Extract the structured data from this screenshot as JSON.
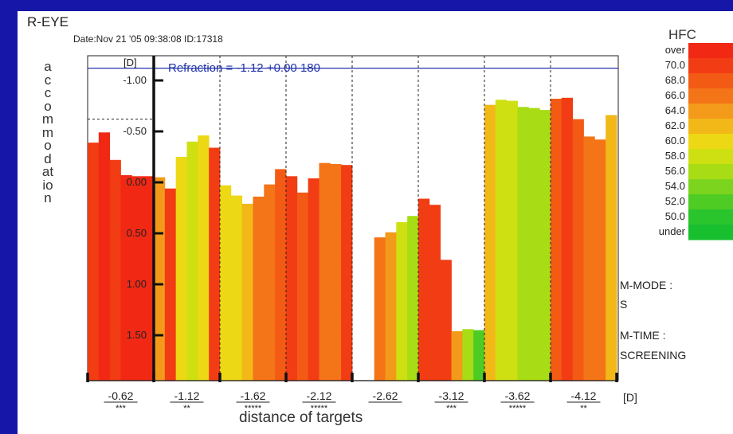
{
  "header": {
    "title": "R-EYE",
    "date_id": "Date:Nov 21 '05 09:38:08   ID:17318"
  },
  "side_info": {
    "m_mode_label": "M-MODE :",
    "m_mode_value": "S",
    "m_time_label": "M-TIME :",
    "m_time_value": "SCREENING"
  },
  "legend": {
    "title": "HFC",
    "entries": [
      {
        "label": "over",
        "color": "#f02814"
      },
      {
        "label": "70.0",
        "color": "#f23c14"
      },
      {
        "label": "68.0",
        "color": "#f35a14"
      },
      {
        "label": "66.0",
        "color": "#f47418"
      },
      {
        "label": "64.0",
        "color": "#f39a1a"
      },
      {
        "label": "62.0",
        "color": "#f2b818"
      },
      {
        "label": "60.0",
        "color": "#ecd814"
      },
      {
        "label": "58.0",
        "color": "#cfe012"
      },
      {
        "label": "56.0",
        "color": "#a8dc14"
      },
      {
        "label": "54.0",
        "color": "#7cd41e"
      },
      {
        "label": "52.0",
        "color": "#4ecc24"
      },
      {
        "label": "50.0",
        "color": "#2ac42c"
      },
      {
        "label": "under",
        "color": "#18c030"
      }
    ]
  },
  "chart_data": {
    "type": "bar",
    "title": "Refraction = -1.12  +0.00 180",
    "xlabel": "distance of targets",
    "ylabel": "accommodation",
    "y_unit": "[D]",
    "x_unit": "[D]",
    "refraction_value": -1.12,
    "ylim": [
      -1.2,
      2.15
    ],
    "y_inverted": true,
    "y_ticks": [
      {
        "label": "-1.00",
        "value": -1.0
      },
      {
        "label": "-0.50",
        "value": -0.5
      },
      {
        "label": "0.00",
        "value": 0.0
      },
      {
        "label": "0.50",
        "value": 0.5
      },
      {
        "label": "1.00",
        "value": 1.0
      },
      {
        "label": "1.50",
        "value": 1.5
      }
    ],
    "dashed_level": -0.62,
    "groups": [
      {
        "target": "-0.62",
        "stars": "***",
        "bars": [
          {
            "value": -0.39,
            "hfc": "70.0"
          },
          {
            "value": -0.49,
            "hfc": "over"
          },
          {
            "value": -0.22,
            "hfc": "70.0"
          },
          {
            "value": -0.07,
            "hfc": "over"
          },
          {
            "value": -0.06,
            "hfc": "over"
          },
          {
            "value": -0.06,
            "hfc": "over"
          }
        ]
      },
      {
        "target": "-1.12",
        "stars": "**",
        "bars": [
          {
            "value": -0.05,
            "hfc": "64.0"
          },
          {
            "value": 0.06,
            "hfc": "70.0"
          },
          {
            "value": -0.25,
            "hfc": "60.0"
          },
          {
            "value": -0.4,
            "hfc": "58.0"
          },
          {
            "value": -0.46,
            "hfc": "60.0"
          },
          {
            "value": -0.34,
            "hfc": "70.0"
          }
        ]
      },
      {
        "target": "-1.62",
        "stars": "*****",
        "bars": [
          {
            "value": 0.03,
            "hfc": "60.0"
          },
          {
            "value": 0.13,
            "hfc": "60.0"
          },
          {
            "value": 0.21,
            "hfc": "62.0"
          },
          {
            "value": 0.14,
            "hfc": "66.0"
          },
          {
            "value": 0.02,
            "hfc": "66.0"
          },
          {
            "value": -0.13,
            "hfc": "68.0"
          }
        ]
      },
      {
        "target": "-2.12",
        "stars": "*****",
        "bars": [
          {
            "value": -0.06,
            "hfc": "70.0"
          },
          {
            "value": 0.1,
            "hfc": "68.0"
          },
          {
            "value": -0.04,
            "hfc": "70.0"
          },
          {
            "value": -0.19,
            "hfc": "66.0"
          },
          {
            "value": -0.18,
            "hfc": "66.0"
          },
          {
            "value": -0.17,
            "hfc": "70.0"
          }
        ]
      },
      {
        "target": "-2.62",
        "stars": "",
        "bars": [
          {
            "value": null,
            "hfc": ""
          },
          {
            "value": null,
            "hfc": ""
          },
          {
            "value": 0.54,
            "hfc": "66.0"
          },
          {
            "value": 0.49,
            "hfc": "64.0"
          },
          {
            "value": 0.39,
            "hfc": "58.0"
          },
          {
            "value": 0.33,
            "hfc": "56.0"
          }
        ]
      },
      {
        "target": "-3.12",
        "stars": "***",
        "bars": [
          {
            "value": 0.16,
            "hfc": "70.0"
          },
          {
            "value": 0.22,
            "hfc": "70.0"
          },
          {
            "value": 0.76,
            "hfc": "70.0"
          },
          {
            "value": 1.46,
            "hfc": "64.0"
          },
          {
            "value": 1.44,
            "hfc": "56.0"
          },
          {
            "value": 1.45,
            "hfc": "52.0"
          }
        ]
      },
      {
        "target": "-3.62",
        "stars": "*****",
        "bars": [
          {
            "value": -0.76,
            "hfc": "62.0"
          },
          {
            "value": -0.81,
            "hfc": "58.0"
          },
          {
            "value": -0.8,
            "hfc": "58.0"
          },
          {
            "value": -0.74,
            "hfc": "56.0"
          },
          {
            "value": -0.73,
            "hfc": "56.0"
          },
          {
            "value": -0.71,
            "hfc": "56.0"
          }
        ]
      },
      {
        "target": "-4.12",
        "stars": "**",
        "bars": [
          {
            "value": -0.82,
            "hfc": "68.0"
          },
          {
            "value": -0.83,
            "hfc": "70.0"
          },
          {
            "value": -0.62,
            "hfc": "68.0"
          },
          {
            "value": -0.45,
            "hfc": "66.0"
          },
          {
            "value": -0.42,
            "hfc": "66.0"
          },
          {
            "value": -0.66,
            "hfc": "62.0"
          }
        ]
      }
    ]
  }
}
